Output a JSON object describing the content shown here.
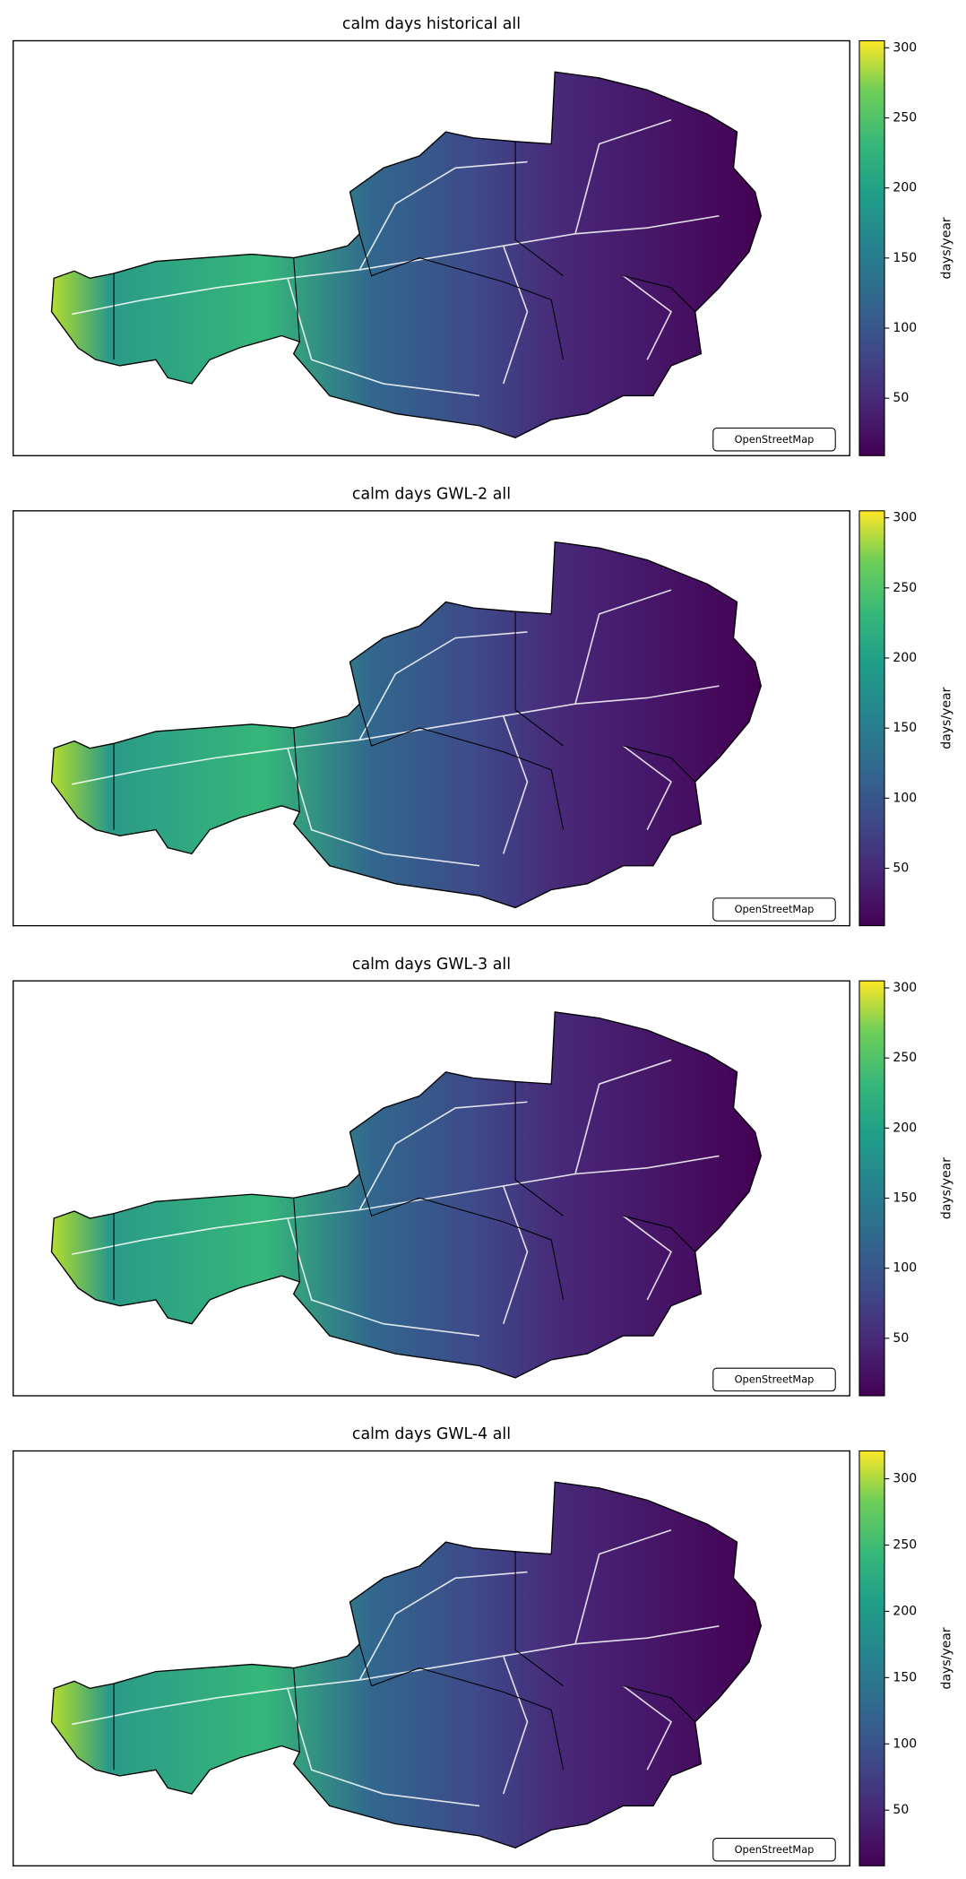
{
  "panels": [
    {
      "title": "calm days historical all",
      "attribution": "OpenStreetMap",
      "colorbar": {
        "label": "days/year",
        "lim": [
          9,
          305
        ],
        "ticks": [
          50,
          100,
          150,
          200,
          250,
          300
        ]
      }
    },
    {
      "title": "calm days GWL-2 all",
      "attribution": "OpenStreetMap",
      "colorbar": {
        "label": "days/year",
        "lim": [
          9,
          305
        ],
        "ticks": [
          50,
          100,
          150,
          200,
          250,
          300
        ]
      }
    },
    {
      "title": "calm days GWL-3 all",
      "attribution": "OpenStreetMap",
      "colorbar": {
        "label": "days/year",
        "lim": [
          9,
          305
        ],
        "ticks": [
          50,
          100,
          150,
          200,
          250,
          300
        ]
      }
    },
    {
      "title": "calm days GWL-4 all",
      "attribution": "OpenStreetMap",
      "colorbar": {
        "label": "days/year",
        "lim": [
          8,
          321
        ],
        "ticks": [
          50,
          100,
          150,
          200,
          250,
          300
        ]
      }
    }
  ]
}
